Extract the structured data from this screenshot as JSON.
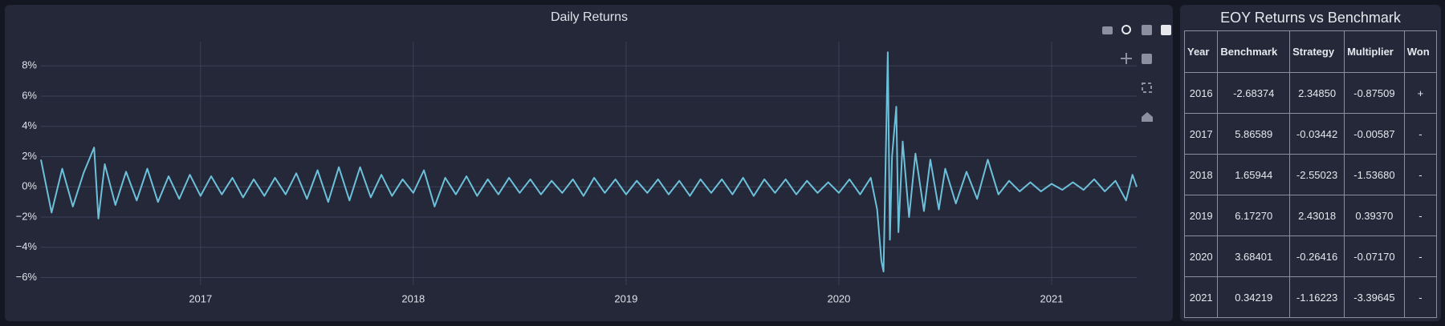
{
  "chart_data": {
    "type": "line",
    "title": "Daily Returns",
    "color": "#6cc0da",
    "grid": true,
    "x": [
      2016.25,
      2016.3,
      2016.35,
      2016.4,
      2016.45,
      2016.5,
      2016.52,
      2016.55,
      2016.6,
      2016.65,
      2016.7,
      2016.75,
      2016.8,
      2016.85,
      2016.9,
      2016.95,
      2017.0,
      2017.05,
      2017.1,
      2017.15,
      2017.2,
      2017.25,
      2017.3,
      2017.35,
      2017.4,
      2017.45,
      2017.5,
      2017.55,
      2017.6,
      2017.65,
      2017.7,
      2017.75,
      2017.8,
      2017.85,
      2017.9,
      2017.95,
      2018.0,
      2018.05,
      2018.1,
      2018.15,
      2018.2,
      2018.25,
      2018.3,
      2018.35,
      2018.4,
      2018.45,
      2018.5,
      2018.55,
      2018.6,
      2018.65,
      2018.7,
      2018.75,
      2018.8,
      2018.85,
      2018.9,
      2018.95,
      2019.0,
      2019.05,
      2019.1,
      2019.15,
      2019.2,
      2019.25,
      2019.3,
      2019.35,
      2019.4,
      2019.45,
      2019.5,
      2019.55,
      2019.6,
      2019.65,
      2019.7,
      2019.75,
      2019.8,
      2019.85,
      2019.9,
      2019.95,
      2020.0,
      2020.05,
      2020.1,
      2020.15,
      2020.18,
      2020.2,
      2020.21,
      2020.23,
      2020.24,
      2020.25,
      2020.27,
      2020.28,
      2020.3,
      2020.33,
      2020.36,
      2020.4,
      2020.43,
      2020.47,
      2020.5,
      2020.55,
      2020.6,
      2020.65,
      2020.7,
      2020.75,
      2020.8,
      2020.85,
      2020.9,
      2020.95,
      2021.0,
      2021.05,
      2021.1,
      2021.15,
      2021.2,
      2021.25,
      2021.3,
      2021.35,
      2021.38,
      2021.4
    ],
    "values": [
      1.8,
      -1.7,
      1.2,
      -1.3,
      0.9,
      2.6,
      -2.1,
      1.5,
      -1.2,
      1.0,
      -0.9,
      1.2,
      -1.0,
      0.7,
      -0.8,
      0.8,
      -0.6,
      0.7,
      -0.5,
      0.6,
      -0.7,
      0.5,
      -0.6,
      0.6,
      -0.5,
      0.9,
      -0.8,
      1.1,
      -1.0,
      1.3,
      -0.9,
      1.3,
      -0.7,
      0.8,
      -0.6,
      0.5,
      -0.4,
      1.1,
      -1.3,
      0.6,
      -0.5,
      0.7,
      -0.6,
      0.5,
      -0.5,
      0.6,
      -0.4,
      0.5,
      -0.5,
      0.4,
      -0.4,
      0.5,
      -0.6,
      0.6,
      -0.4,
      0.5,
      -0.5,
      0.4,
      -0.4,
      0.5,
      -0.5,
      0.4,
      -0.6,
      0.5,
      -0.4,
      0.5,
      -0.5,
      0.6,
      -0.6,
      0.5,
      -0.4,
      0.5,
      -0.5,
      0.4,
      -0.4,
      0.3,
      -0.4,
      0.5,
      -0.5,
      0.6,
      -1.5,
      -4.9,
      -5.6,
      8.9,
      -3.5,
      2.0,
      5.3,
      -3.0,
      3.0,
      -2.0,
      2.2,
      -1.6,
      1.8,
      -1.5,
      1.2,
      -1.1,
      1.0,
      -0.8,
      1.8,
      -0.5,
      0.4,
      -0.3,
      0.3,
      -0.3,
      0.2,
      -0.2,
      0.3,
      -0.2,
      0.5,
      -0.3,
      0.4,
      -0.9,
      0.8,
      0.0
    ],
    "xlim": [
      2016.25,
      2021.4
    ],
    "xticks": [
      2017,
      2018,
      2019,
      2020,
      2021
    ],
    "ylim": [
      -6.5,
      9.6
    ],
    "yticks": [
      {
        "value": -6,
        "label": "−6%"
      },
      {
        "value": -4,
        "label": "−4%"
      },
      {
        "value": -2,
        "label": "−2%"
      },
      {
        "value": 0,
        "label": "0%"
      },
      {
        "value": 2,
        "label": "2%"
      },
      {
        "value": 4,
        "label": "4%"
      },
      {
        "value": 6,
        "label": "6%"
      },
      {
        "value": 8,
        "label": "8%"
      }
    ]
  },
  "table": {
    "title": "EOY Returns vs Benchmark",
    "header": [
      "Year",
      "Benchmark",
      "Strategy",
      "Multiplier",
      "Won"
    ],
    "rows": [
      [
        "2016",
        "-2.68374",
        "2.34850",
        "-0.87509",
        "+"
      ],
      [
        "2017",
        "5.86589",
        "-0.03442",
        "-0.00587",
        "-"
      ],
      [
        "2018",
        "1.65944",
        "-2.55023",
        "-1.53680",
        "-"
      ],
      [
        "2019",
        "6.17270",
        "2.43018",
        "0.39370",
        "-"
      ],
      [
        "2020",
        "3.68401",
        "-0.26416",
        "-0.07170",
        "-"
      ],
      [
        "2021",
        "0.34219",
        "-1.16223",
        "-3.39645",
        "-"
      ]
    ]
  }
}
